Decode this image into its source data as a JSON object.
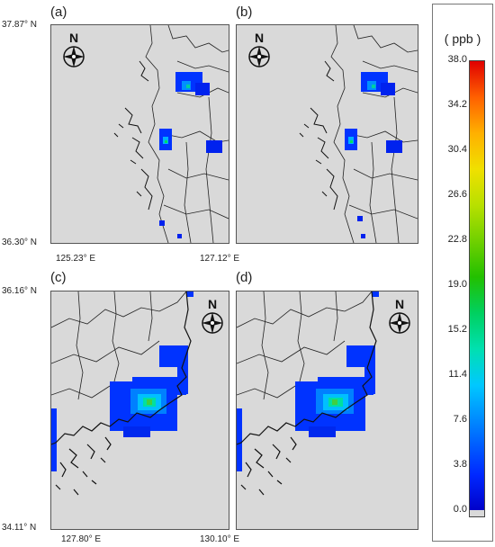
{
  "panels": [
    {
      "id": "a",
      "label": "(a)"
    },
    {
      "id": "b",
      "label": "(b)"
    },
    {
      "id": "c",
      "label": "(c)"
    },
    {
      "id": "d",
      "label": "(d)"
    }
  ],
  "coords": {
    "top_lat_max": "37.87° N",
    "top_lat_min": "36.30° N",
    "top_lon_min": "125.23° E",
    "top_lon_max": "127.12° E",
    "bottom_lat_max": "36.16° N",
    "bottom_lat_min": "34.11° N",
    "bottom_lon_min": "127.80° E",
    "bottom_lon_max": "130.10° E"
  },
  "north_arrow": {
    "label": "N",
    "icon": "compass-rose-icon"
  },
  "legend": {
    "unit": "( ppb  )",
    "ticks": [
      "38.0",
      "34.2",
      "30.4",
      "26.6",
      "22.8",
      "19.0",
      "15.2",
      "11.4",
      "7.6",
      "3.8",
      "0.0"
    ],
    "min": 0.0,
    "max": 38.0,
    "colors": [
      "#0000c8",
      "#0078ff",
      "#00c8ff",
      "#00d060",
      "#70d000",
      "#f0e000",
      "#ff6000",
      "#e00000"
    ]
  }
}
